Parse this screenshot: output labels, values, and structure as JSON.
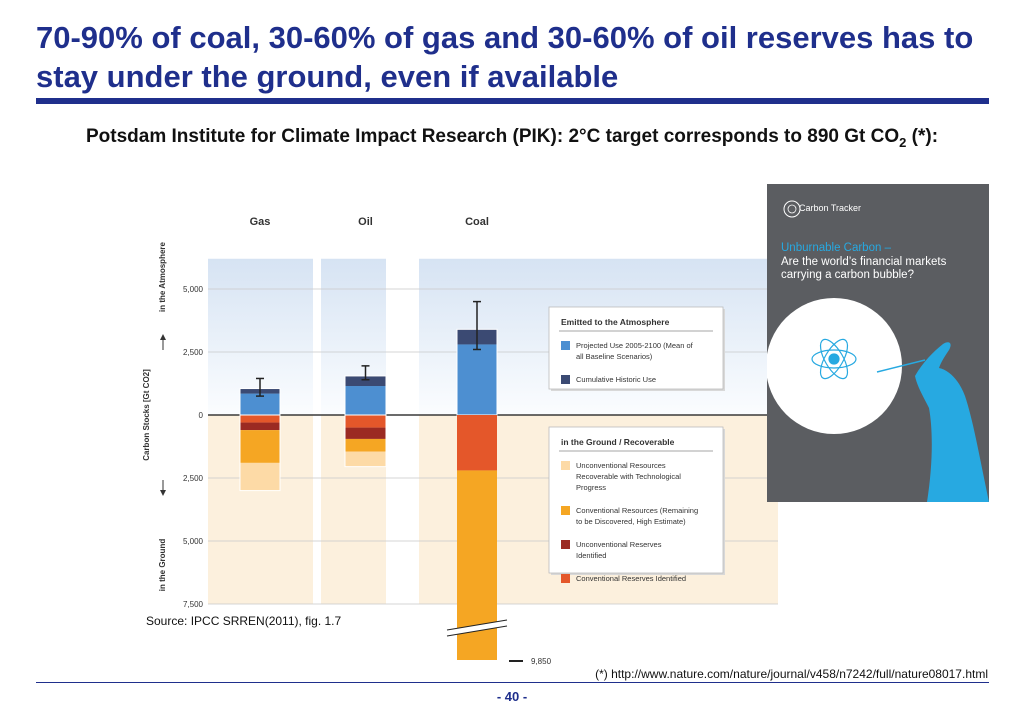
{
  "slide": {
    "title": "70-90% of coal, 30-60% of gas and 30-60% of oil reserves has to stay under the ground, even if available",
    "subtitle_main": "Potsdam Institute for Climate Impact Research (PIK): 2°C target corresponds to 890 Gt CO",
    "subtitle_sub": "2",
    "subtitle_end": " (*):",
    "source": "Source: IPCC SRREN(2011), fig. 1.7",
    "footnote": "(*) http://www.nature.com/nature/journal/v458/n7242/full/nature08017.html",
    "page_number": "- 40 -"
  },
  "report": {
    "brand": "Carbon Tracker",
    "title_line1": "Unburnable Carbon –",
    "title_line2": "Are the world’s financial markets carrying a carbon bubble?"
  },
  "chart_data": {
    "type": "bar",
    "categories": [
      "Gas",
      "Oil",
      "Coal"
    ],
    "ylabel": "Carbon Stocks [Gt CO2]",
    "ylabel_upper": "in the Atmosphere",
    "ylabel_lower": "in the Ground",
    "ylim": [
      -7500,
      6200
    ],
    "yticks": [
      5000,
      2500,
      0,
      -2500,
      -5000,
      -7500
    ],
    "ytick_labels": [
      "5,000",
      "2,500",
      "0",
      "2,500",
      "5,000",
      "7,500"
    ],
    "coal_bottom_label": "9,850",
    "coal_bottom_value": -9850,
    "atmosphere_series": [
      {
        "name": "Projected Use 2005-2100 (Mean of all Baseline Scenarios)",
        "color": "#4d8fd1",
        "values": [
          850,
          1150,
          2800
        ]
      },
      {
        "name": "Cumulative Historic Use",
        "color": "#3b4a73",
        "values": [
          200,
          400,
          600
        ]
      }
    ],
    "error_bars": [
      [
        750,
        1450
      ],
      [
        1400,
        1950
      ],
      [
        2600,
        4500
      ]
    ],
    "ground_series": [
      {
        "name": "Conventional Reserves Identified",
        "color": "#e4572a",
        "values": [
          300,
          500,
          2200
        ]
      },
      {
        "name": "Unconventional Reserves Identified",
        "color": "#9b2a22",
        "values": [
          300,
          450,
          0
        ]
      },
      {
        "name": "Conventional Resources (Remaining to be Discovered, High Estimate)",
        "color": "#f5a623",
        "values": [
          1300,
          500,
          7650
        ]
      },
      {
        "name": "Unconventional Resources Recoverable with Technological Progress",
        "color": "#fddaa6",
        "values": [
          1100,
          600,
          0
        ]
      }
    ],
    "legend_atmosphere_title": "Emitted to the Atmosphere",
    "legend_atmosphere": [
      {
        "label": "Projected Use 2005-2100 (Mean of all Baseline Scenarios)",
        "color": "#4d8fd1"
      },
      {
        "label": "Cumulative Historic Use",
        "color": "#3b4a73"
      }
    ],
    "legend_ground_title": "in the Ground  / Recoverable",
    "legend_ground": [
      {
        "label": "Unconventional Resources Recoverable with Technological Progress",
        "color": "#fddaa6"
      },
      {
        "label": "Conventional Resources (Remaining to be Discovered, High Estimate)",
        "color": "#f5a623"
      },
      {
        "label": "Unconventional Reserves Identified",
        "color": "#9b2a22"
      },
      {
        "label": "Conventional Reserves Identified",
        "color": "#e4572a"
      }
    ]
  }
}
